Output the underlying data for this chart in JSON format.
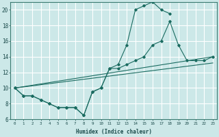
{
  "xlabel": "Humidex (Indice chaleur)",
  "bg_color": "#cce8e8",
  "grid_color": "#ffffff",
  "line_color": "#1a6b60",
  "xlim": [
    -0.5,
    23.5
  ],
  "ylim": [
    6,
    21
  ],
  "xticks": [
    0,
    1,
    2,
    3,
    4,
    5,
    6,
    7,
    8,
    9,
    10,
    11,
    12,
    13,
    14,
    15,
    16,
    17,
    18,
    19,
    20,
    21,
    22,
    23
  ],
  "yticks": [
    6,
    8,
    10,
    12,
    14,
    16,
    18,
    20
  ],
  "line1_x": [
    0,
    1,
    2,
    3,
    4,
    5,
    6,
    7,
    8,
    9,
    10,
    11,
    12,
    13,
    14,
    15,
    16,
    17,
    18
  ],
  "line1_y": [
    10,
    9,
    9,
    8.5,
    8,
    7.5,
    7.5,
    7.5,
    6.5,
    9.5,
    10,
    12.5,
    13,
    15.5,
    20,
    20.5,
    21,
    20,
    19.5
  ],
  "line2_x": [
    0,
    1,
    2,
    3,
    4,
    5,
    6,
    7,
    8,
    9,
    10,
    11,
    12,
    13,
    14,
    15,
    16,
    17,
    18,
    19,
    20,
    21,
    22,
    23
  ],
  "line2_y": [
    10,
    9,
    9,
    8.5,
    8,
    7.5,
    7.5,
    7.5,
    6.5,
    9.5,
    10,
    12.5,
    12.5,
    13,
    13.5,
    14,
    15.5,
    16,
    18.5,
    15.5,
    13.5,
    13.5,
    13.5,
    14
  ],
  "line3_x": [
    0,
    23
  ],
  "line3_y": [
    10,
    14
  ],
  "line4_x": [
    0,
    23
  ],
  "line4_y": [
    10,
    13.2
  ]
}
